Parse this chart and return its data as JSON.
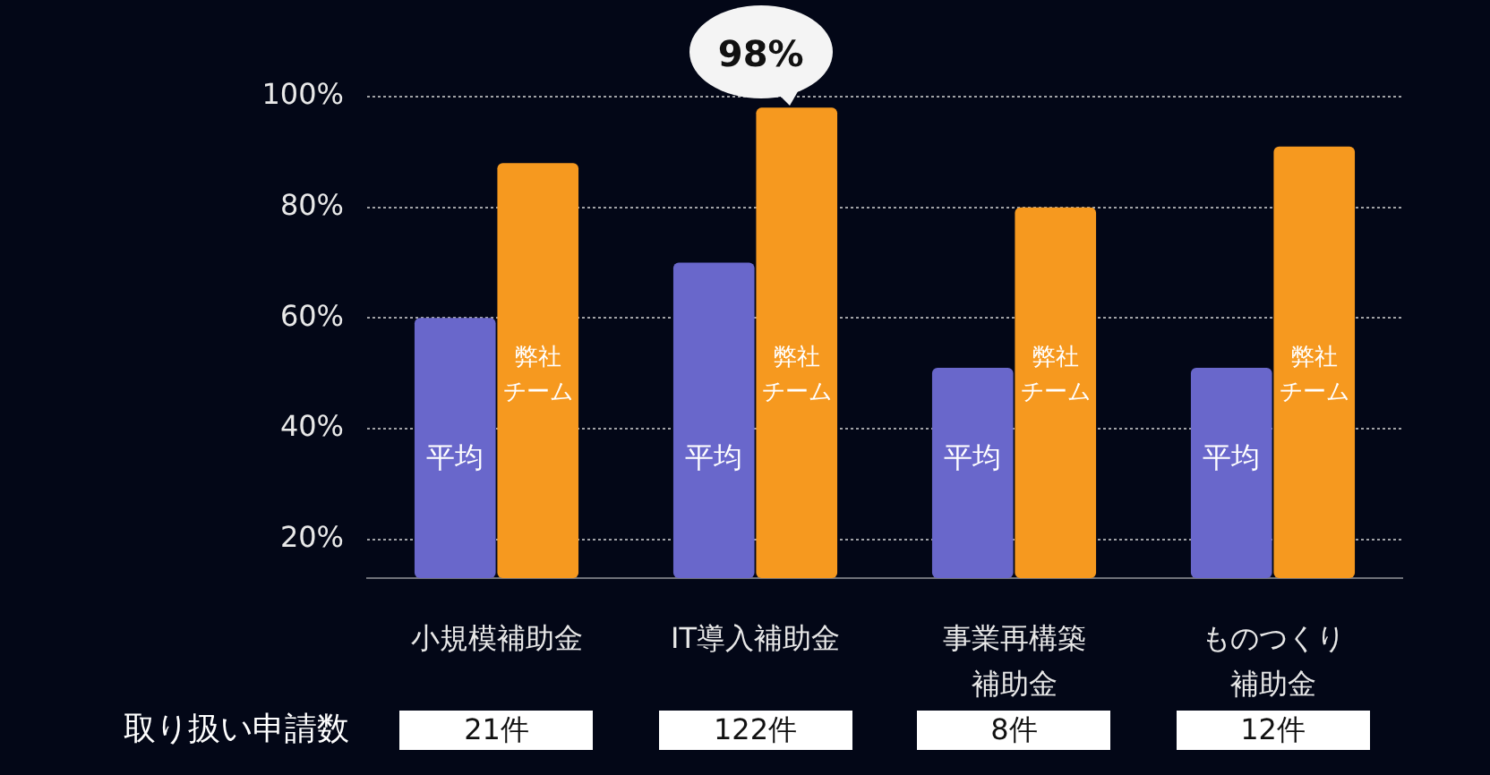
{
  "chart_data": {
    "type": "bar",
    "categories": [
      "小規模補助金",
      "IT導入補助金",
      "事業再構築補助金",
      "ものつくり補助金"
    ],
    "series": [
      {
        "name": "平均",
        "color": "#6967cb",
        "values": [
          60,
          70,
          51,
          51
        ]
      },
      {
        "name": "弊社チーム",
        "color": "#f6991f",
        "values": [
          88,
          98,
          80,
          91
        ],
        "value_labels": [
          null,
          "98%",
          null,
          null
        ]
      }
    ],
    "ylim": [
      13,
      100
    ],
    "yticks": [
      {
        "value": 20,
        "label": "20%"
      },
      {
        "value": 40,
        "label": "40%"
      },
      {
        "value": 60,
        "label": "60%"
      },
      {
        "value": 80,
        "label": "80%"
      },
      {
        "value": 100,
        "label": "100%"
      }
    ],
    "grid": "y",
    "annotations": [
      "取り扱い申請数",
      "21件",
      "122件",
      "8件",
      "12件"
    ]
  }
}
